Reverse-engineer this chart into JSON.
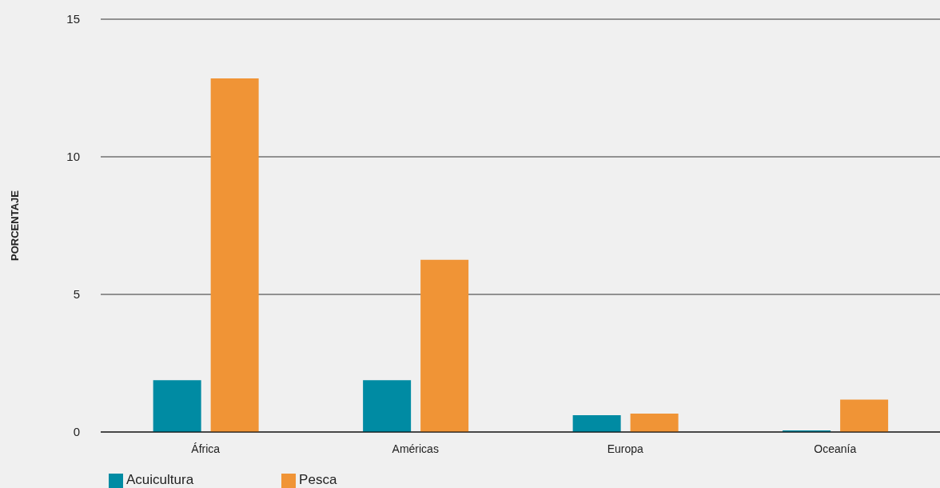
{
  "chart_data": {
    "type": "bar",
    "ylabel": "PORCENTAJE",
    "categories": [
      "África",
      "Américas",
      "Europa",
      "Oceanía"
    ],
    "series": [
      {
        "name": "Acuicultura",
        "color": "#008ba3",
        "values": [
          1.88,
          1.88,
          0.61,
          0.06
        ]
      },
      {
        "name": "Pesca",
        "color": "#f09436",
        "values": [
          12.85,
          6.26,
          0.67,
          1.18
        ]
      }
    ],
    "ylim": [
      0,
      15
    ],
    "yticks": [
      0,
      5,
      10,
      15
    ],
    "grid": "y",
    "legend": "bottom left"
  }
}
